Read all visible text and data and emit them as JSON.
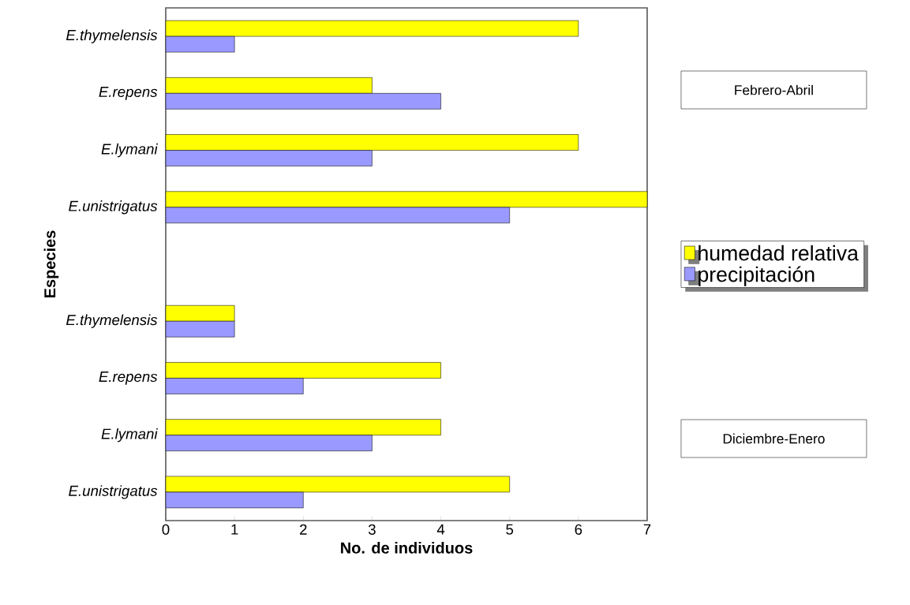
{
  "chart_data": {
    "type": "bar",
    "orientation": "horizontal",
    "xlabel": "No. de individuos",
    "ylabel": "Especies",
    "categories": [
      "E.thymelensis",
      "E.repens",
      "E.lymani",
      "E.unistrigatus",
      null,
      "E.thymelensis",
      "E.repens",
      "E.lymani",
      "E.unistrigatus"
    ],
    "series": [
      {
        "name": "humedad relativa",
        "color": "#ffff00",
        "values": [
          6,
          3,
          6,
          7,
          null,
          1,
          4,
          4,
          5
        ]
      },
      {
        "name": "precipitación",
        "color": "#9999ff",
        "values": [
          1,
          4,
          3,
          5,
          null,
          1,
          2,
          3,
          2
        ]
      }
    ],
    "xlim": [
      0,
      7
    ],
    "xticks": [
      0,
      1,
      2,
      3,
      4,
      5,
      6,
      7
    ],
    "grid": false,
    "legend": "right",
    "annotations": [
      "Febrero-Abril",
      "Diciembre-Enero"
    ]
  }
}
